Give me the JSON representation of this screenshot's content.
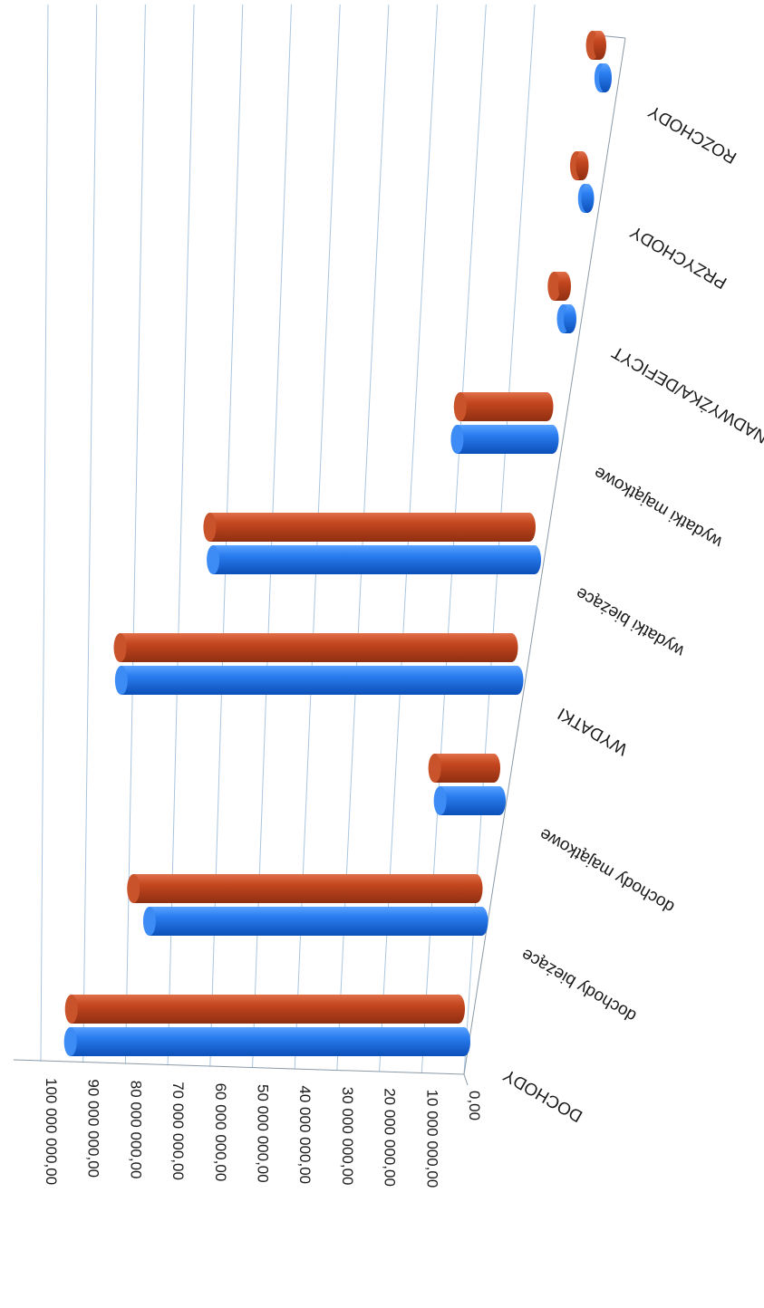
{
  "chart_data": {
    "type": "bar",
    "orientation": "horizontal",
    "style": "3d-cylinder",
    "title": "",
    "xlabel": "",
    "ylabel": "",
    "categories": [
      "DOCHODY",
      "dochody bieżące",
      "dochody majątkowe",
      "WYDATKI",
      "wydatki bieżące",
      "wydatki majątkowe",
      "NADWYŻKA/DEFICYT",
      "PRZYCHODY",
      "ROZCHODY"
    ],
    "series": [
      {
        "color": "#1f6fe0",
        "values": [
          93000000,
          78500000,
          14000000,
          93500000,
          76000000,
          22500000,
          1600000,
          800000,
          1100000
        ]
      },
      {
        "color": "#c0441d",
        "values": [
          91500000,
          81000000,
          14000000,
          92500000,
          75500000,
          20500000,
          2500000,
          1400000,
          1800000
        ]
      }
    ],
    "axis": {
      "min": 0,
      "max": 100000000,
      "step": 10000000,
      "tick_labels": [
        "0,00",
        "10 000 000,00",
        "20 000 000,00",
        "30 000 000,00",
        "40 000 000,00",
        "50 000 000,00",
        "60 000 000,00",
        "70 000 000,00",
        "80 000 000,00",
        "90 000 000,00",
        "100 000 000,00"
      ]
    },
    "grid": true,
    "legend": "none"
  }
}
